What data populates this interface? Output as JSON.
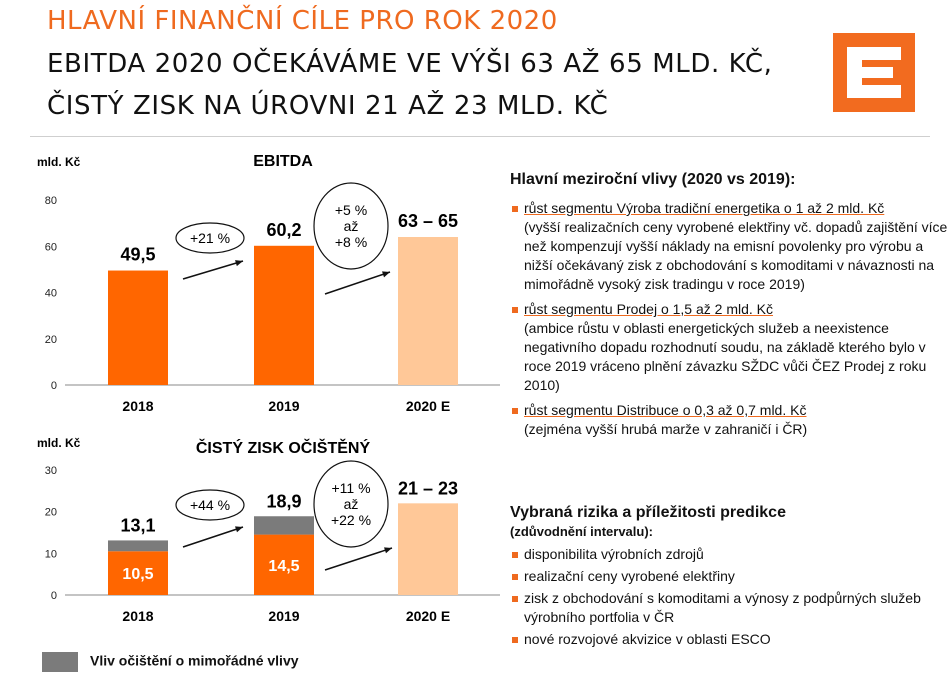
{
  "titles": {
    "line1": "HLAVNÍ FINANČNÍ CÍLE PRO ROK 2020",
    "line2": "EBITDA 2020 OČEKÁVÁME VE VÝŠI 63 AŽ 65 MLD. KČ,",
    "line3": "ČISTÝ ZISK NA ÚROVNI 21 AŽ 23 MLD. KČ"
  },
  "colors": {
    "accent": "#ef6a1f",
    "orange": "#ff6600",
    "light_orange": "#ffc898",
    "gray": "#7b7b7b"
  },
  "chart_data": [
    {
      "type": "bar",
      "title": "EBITDA",
      "ylabel": "mld. Kč",
      "ylim": [
        0,
        80
      ],
      "yticks": [
        0,
        20,
        40,
        60,
        80
      ],
      "categories": [
        "2018",
        "2019",
        "2020 E"
      ],
      "values": [
        49.5,
        60.2,
        64
      ],
      "value_labels": [
        "49,5",
        "60,2",
        "63 – 65"
      ],
      "styles": [
        "actual",
        "actual",
        "estimate"
      ],
      "annotations": [
        {
          "lines": [
            "+21 %"
          ]
        },
        {
          "lines": [
            "+5 %",
            "až",
            "+8 %"
          ]
        }
      ]
    },
    {
      "type": "bar",
      "title": "ČISTÝ ZISK OČIŠTĚNÝ",
      "ylabel": "mld. Kč",
      "ylim": [
        0,
        30
      ],
      "yticks": [
        0,
        10,
        20,
        30
      ],
      "categories": [
        "2018",
        "2019",
        "2020 E"
      ],
      "base_values": [
        10.5,
        14.5,
        22
      ],
      "totals": [
        13.1,
        18.9,
        22
      ],
      "base_labels": [
        "10,5",
        "14,5",
        ""
      ],
      "total_labels": [
        "13,1",
        "18,9",
        "21 – 23"
      ],
      "styles": [
        "actual",
        "actual",
        "estimate"
      ],
      "annotations": [
        {
          "lines": [
            "+44 %"
          ]
        },
        {
          "lines": [
            "+11 %",
            "až",
            "+22 %"
          ]
        }
      ],
      "legend": "Vliv očištění o mimořádné vlivy"
    }
  ],
  "drivers": {
    "heading": "Hlavní meziroční vlivy (2020 vs 2019):",
    "items": [
      {
        "title": "růst segmentu Výroba tradiční energetika o 1 až 2 mld. Kč",
        "detail": "(vyšší realizačních ceny vyrobené elektřiny vč. dopadů zajištění více než kompenzují vyšší náklady na emisní povolenky pro výrobu a nižší očekávaný zisk z obchodování s komoditami v návaznosti na mimořádně vysoký zisk tradingu v roce 2019)"
      },
      {
        "title": "růst segmentu Prodej o 1,5 až 2 mld. Kč",
        "detail": "(ambice růstu v oblasti energetických služeb a neexistence negativního dopadu rozhodnutí soudu, na základě kterého bylo v roce 2019 vráceno plnění závazku SŽDC vůči ČEZ Prodej z roku 2010)"
      },
      {
        "title": "růst segmentu Distribuce o 0,3 až 0,7 mld. Kč",
        "detail": "(zejména vyšší hrubá marže v zahraničí i ČR)"
      }
    ]
  },
  "risks": {
    "heading": "Vybraná rizika a příležitosti predikce",
    "subheading": "(zdůvodnění intervalu):",
    "items": [
      "disponibilita výrobních zdrojů",
      "realizační ceny vyrobené elektřiny",
      "zisk z obchodování s komoditami a výnosy z podpůrných služeb výrobního portfolia v ČR",
      "nové rozvojové akvizice v oblasti ESCO"
    ]
  }
}
